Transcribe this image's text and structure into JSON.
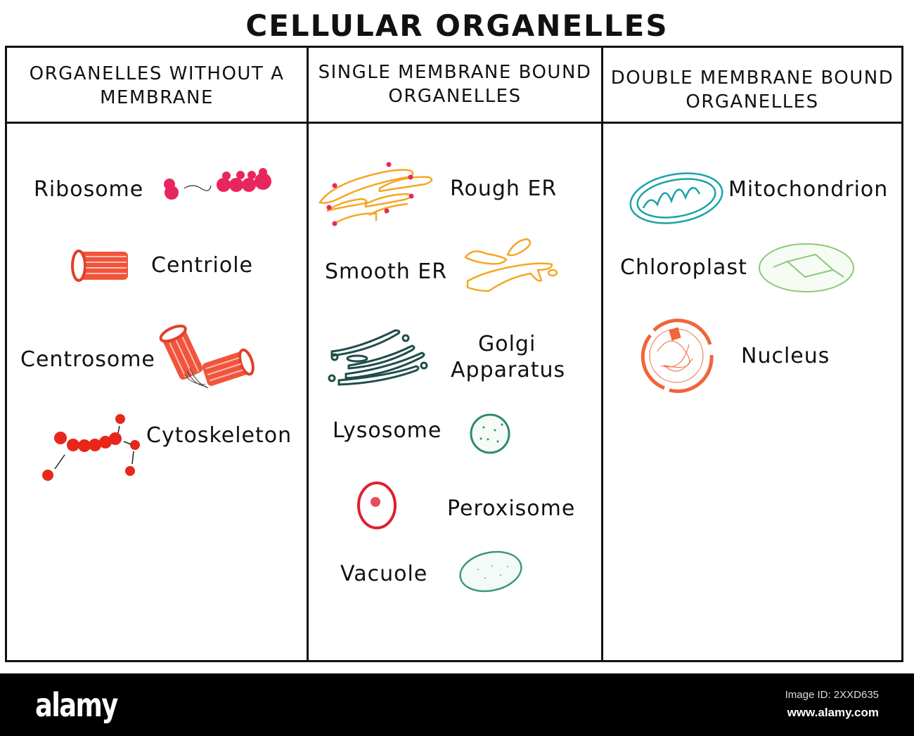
{
  "title": "CELLULAR ORGANELLES",
  "columns": [
    {
      "header": [
        "ORGANELLES WITHOUT A",
        "MEMBRANE"
      ],
      "items": [
        "Ribosome",
        "Centriole",
        "Centrosome",
        "Cytoskeleton"
      ]
    },
    {
      "header": [
        "SINGLE MEMBRANE BOUND",
        "ORGANELLES"
      ],
      "items": [
        "Rough ER",
        "Smooth ER",
        "Golgi",
        "Apparatus",
        "Lysosome",
        "Peroxisome",
        "Vacuole"
      ]
    },
    {
      "header": [
        "DOUBLE MEMBRANE BOUND",
        "ORGANELLES"
      ],
      "items": [
        "Mitochondrion",
        "Chloroplast",
        "Nucleus"
      ]
    }
  ],
  "colors": {
    "ribosome": "#e8265e",
    "centriole": "#f0553a",
    "er": "#f5a623",
    "golgi": "#1f4d4a",
    "lysosome": "#2e8b6a",
    "peroxisome": "#e0202e",
    "vacuole": "#3a9a78",
    "mitochondrion": "#1aa3a8",
    "chloroplast": "#8cc97a",
    "nucleus": "#f0653a"
  },
  "footer": {
    "logo": "alamy",
    "image_id": "Image ID: 2XXD635",
    "url": "www.alamy.com"
  }
}
